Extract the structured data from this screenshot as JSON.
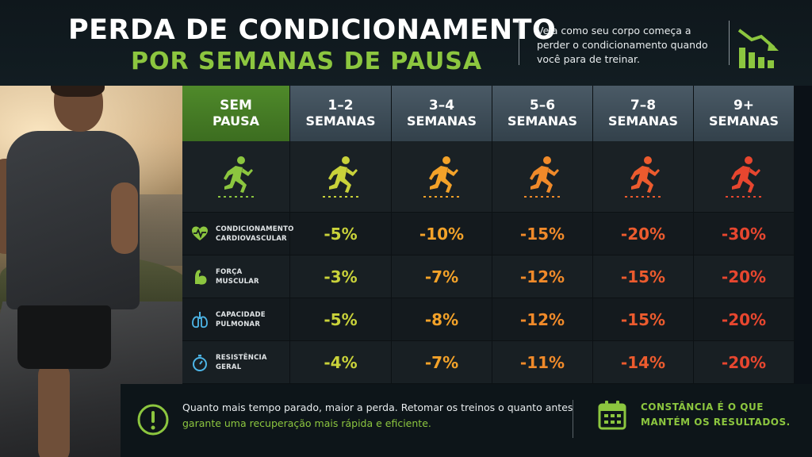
{
  "header": {
    "title_line1": "PERDA DE CONDICIONAMENTO",
    "title_line2": "POR SEMANAS DE PAUSA",
    "description": "Veja como seu corpo começa a perder o condicionamento quando você para de treinar.",
    "icon": "declining-bar-chart-icon"
  },
  "colors": {
    "accent_green": "#8cc63f",
    "levels": [
      "#8cc63f",
      "#c9d23a",
      "#f3a229",
      "#f08a2a",
      "#ec5b2e",
      "#e7462f"
    ]
  },
  "table": {
    "columns": [
      {
        "line1": "SEM",
        "line2": "PAUSA"
      },
      {
        "line1": "1–2",
        "line2": "SEMANAS"
      },
      {
        "line1": "3–4",
        "line2": "SEMANAS"
      },
      {
        "line1": "5–6",
        "line2": "SEMANAS"
      },
      {
        "line1": "7–8",
        "line2": "SEMANAS"
      },
      {
        "line1": "9+",
        "line2": "SEMANAS"
      }
    ],
    "rows": [
      {
        "line1": "CONDICIONAMENTO",
        "line2": "CARDIOVASCULAR",
        "icon": "heart-pulse-icon",
        "values": [
          "-5%",
          "-10%",
          "-15%",
          "-20%",
          "-30%"
        ]
      },
      {
        "line1": "FORÇA",
        "line2": "MUSCULAR",
        "icon": "flexed-arm-icon",
        "values": [
          "-3%",
          "-7%",
          "-12%",
          "-15%",
          "-20%"
        ]
      },
      {
        "line1": "CAPACIDADE",
        "line2": "PULMONAR",
        "icon": "lungs-icon",
        "values": [
          "-5%",
          "-8%",
          "-12%",
          "-15%",
          "-20%"
        ]
      },
      {
        "line1": "RESISTÊNCIA",
        "line2": "GERAL",
        "icon": "stopwatch-icon",
        "values": [
          "-4%",
          "-7%",
          "-11%",
          "-14%",
          "-20%"
        ]
      }
    ],
    "runner_icon": "running-person-icon"
  },
  "footer": {
    "message_line1": "Quanto mais tempo parado, maior a perda. Retomar os treinos o quanto antes",
    "message_line2": "garante uma recuperação mais rápida e eficiente.",
    "tag_line1": "CONSTÂNCIA É O QUE",
    "tag_line2": "MANTÉM OS RESULTADOS.",
    "alert_icon": "exclamation-circle-icon",
    "calendar_icon": "calendar-icon"
  }
}
